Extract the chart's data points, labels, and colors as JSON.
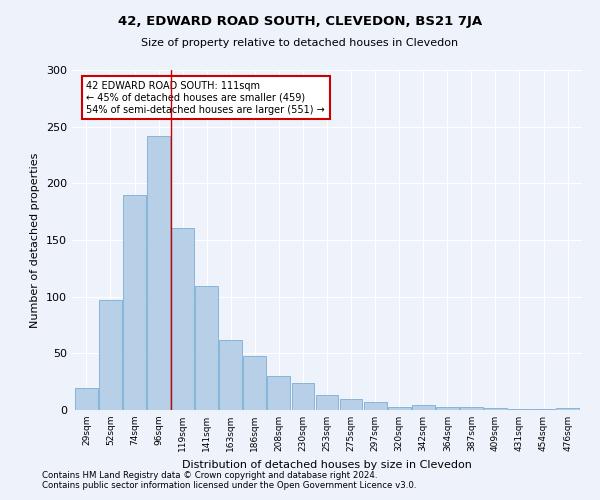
{
  "title": "42, EDWARD ROAD SOUTH, CLEVEDON, BS21 7JA",
  "subtitle": "Size of property relative to detached houses in Clevedon",
  "xlabel": "Distribution of detached houses by size in Clevedon",
  "ylabel": "Number of detached properties",
  "categories": [
    "29sqm",
    "52sqm",
    "74sqm",
    "96sqm",
    "119sqm",
    "141sqm",
    "163sqm",
    "186sqm",
    "208sqm",
    "230sqm",
    "253sqm",
    "275sqm",
    "297sqm",
    "320sqm",
    "342sqm",
    "364sqm",
    "387sqm",
    "409sqm",
    "431sqm",
    "454sqm",
    "476sqm"
  ],
  "values": [
    19,
    97,
    190,
    242,
    161,
    109,
    62,
    48,
    30,
    24,
    13,
    10,
    7,
    3,
    4,
    3,
    3,
    2,
    1,
    1,
    2
  ],
  "bar_color": "#b8cfe8",
  "bar_edge_color": "#7aaed4",
  "vline_x_index": 3.5,
  "vline_color": "#cc0000",
  "annotation_text": "42 EDWARD ROAD SOUTH: 111sqm\n← 45% of detached houses are smaller (459)\n54% of semi-detached houses are larger (551) →",
  "annotation_box_color": "#ffffff",
  "annotation_box_edge_color": "#cc0000",
  "footnote1": "Contains HM Land Registry data © Crown copyright and database right 2024.",
  "footnote2": "Contains public sector information licensed under the Open Government Licence v3.0.",
  "background_color": "#eef2fb",
  "ylim": [
    0,
    300
  ],
  "yticks": [
    0,
    50,
    100,
    150,
    200,
    250,
    300
  ]
}
